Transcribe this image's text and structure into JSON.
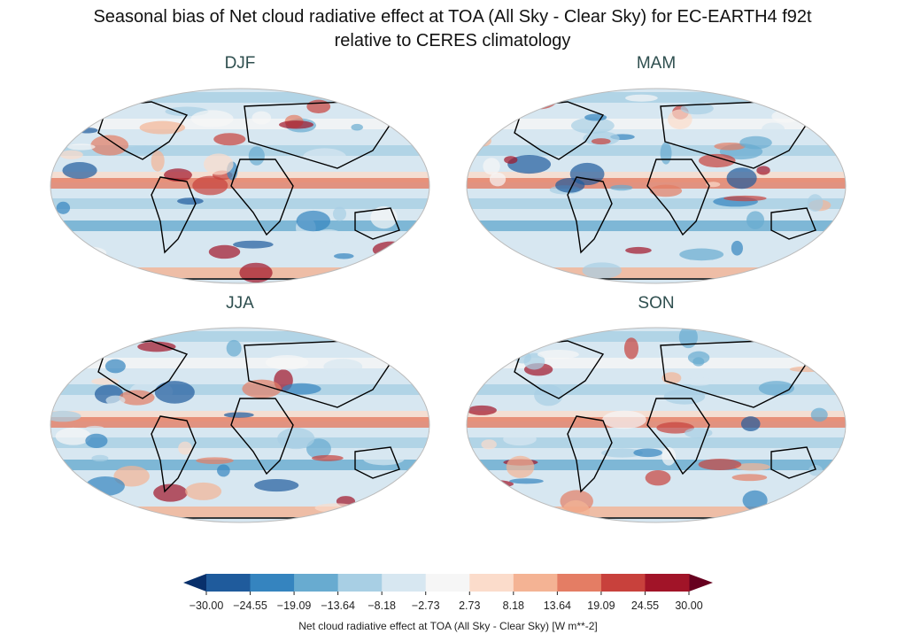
{
  "chart_data": {
    "type": "heatmap",
    "title_line1": "Seasonal bias of Net cloud radiative effect at TOA (All Sky - Clear Sky) for EC-EARTH4 f92t",
    "title_line2": "relative to CERES climatology",
    "panels": [
      {
        "title": "DJF"
      },
      {
        "title": "MAM"
      },
      {
        "title": "JJA"
      },
      {
        "title": "SON"
      }
    ],
    "projection": "Robinson",
    "colorbar": {
      "label": "Net cloud radiative effect at TOA (All Sky - Clear Sky) [W m**-2]",
      "ticks": [
        "−30.00",
        "−24.55",
        "−19.09",
        "−13.64",
        "−8.18",
        "−2.73",
        "2.73",
        "8.18",
        "13.64",
        "19.09",
        "24.55",
        "30.00"
      ],
      "range": [
        -30,
        30
      ],
      "extend": "both",
      "colors": [
        "#1f5b9c",
        "#3584bf",
        "#68abd0",
        "#a8cfe4",
        "#d7e7f1",
        "#f6f6f6",
        "#fbdccb",
        "#f4b394",
        "#e47d64",
        "#c8413c",
        "#a11428"
      ],
      "under_color": "#08306b",
      "over_color": "#67001f"
    }
  }
}
